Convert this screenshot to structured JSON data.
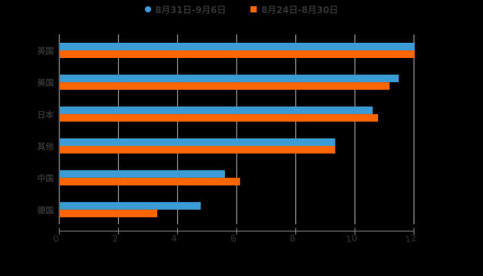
{
  "chart_data": {
    "type": "bar",
    "orientation": "horizontal",
    "title": "",
    "xlabel": "",
    "ylabel": "",
    "xlim": [
      0,
      12
    ],
    "x_ticks": [
      "0",
      "2",
      "4",
      "6",
      "8",
      "10",
      "12"
    ],
    "categories": [
      "英国",
      "美国",
      "日本",
      "其他",
      "中国",
      "德国"
    ],
    "series": [
      {
        "name": "8月31日-9月6日",
        "color": "#3a9bd5",
        "values": [
          12.0,
          11.46,
          10.58,
          9.31,
          5.58,
          4.76
        ]
      },
      {
        "name": "8月24日-8月30日",
        "color": "#ff6600",
        "values": [
          12.0,
          11.15,
          10.76,
          9.31,
          6.09,
          3.29
        ]
      }
    ],
    "grid": true,
    "legend_position": "top"
  },
  "legend": {
    "series0": "8月31日-9月6日",
    "series1": "8月24日-8月30日"
  }
}
